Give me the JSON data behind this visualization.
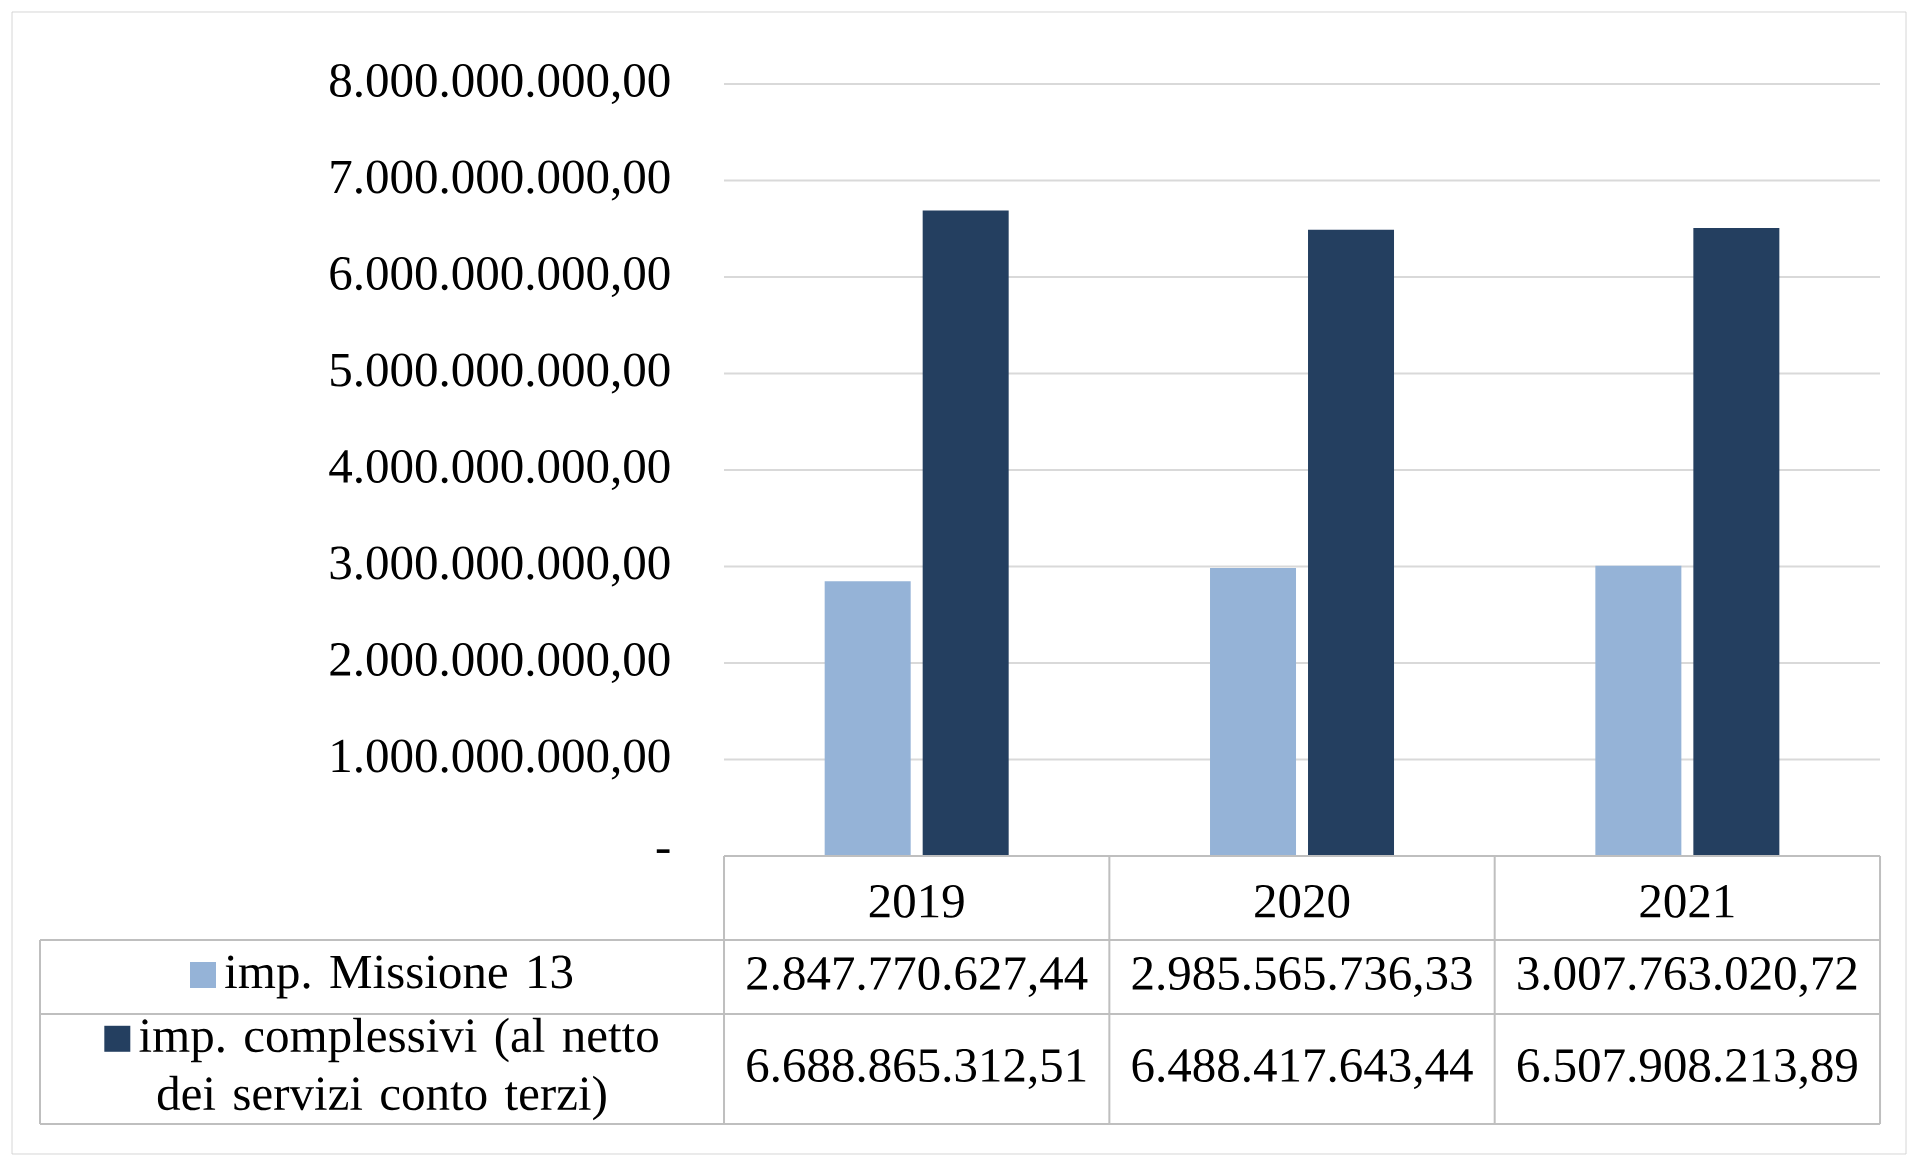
{
  "chart_data": {
    "type": "bar",
    "categories": [
      "2019",
      "2020",
      "2021"
    ],
    "series": [
      {
        "name": "imp. Missione 13",
        "color": "#95b3d7",
        "values": [
          2847770627.44,
          2985565736.33,
          3007763020.72
        ],
        "value_labels": [
          "2.847.770.627,44",
          "2.985.565.736,33",
          "3.007.763.020,72"
        ]
      },
      {
        "name": "imp. complessivi (al netto dei servizi conto terzi)",
        "color": "#243f60",
        "values": [
          6688865312.51,
          6488417643.44,
          6507908213.89
        ],
        "value_labels": [
          "6.688.865.312,51",
          "6.488.417.643,44",
          "6.507.908.213,89"
        ]
      }
    ],
    "ylim": [
      0,
      8000000000
    ],
    "yticks": [
      {
        "value": 0,
        "label": "-"
      },
      {
        "value": 1000000000,
        "label": "1.000.000.000,00"
      },
      {
        "value": 2000000000,
        "label": "2.000.000.000,00"
      },
      {
        "value": 3000000000,
        "label": "3.000.000.000,00"
      },
      {
        "value": 4000000000,
        "label": "4.000.000.000,00"
      },
      {
        "value": 5000000000,
        "label": "5.000.000.000,00"
      },
      {
        "value": 6000000000,
        "label": "6.000.000.000,00"
      },
      {
        "value": 7000000000,
        "label": "7.000.000.000,00"
      },
      {
        "value": 8000000000,
        "label": "8.000.000.000,00"
      }
    ],
    "grid": "y",
    "legend": "bottom left"
  }
}
